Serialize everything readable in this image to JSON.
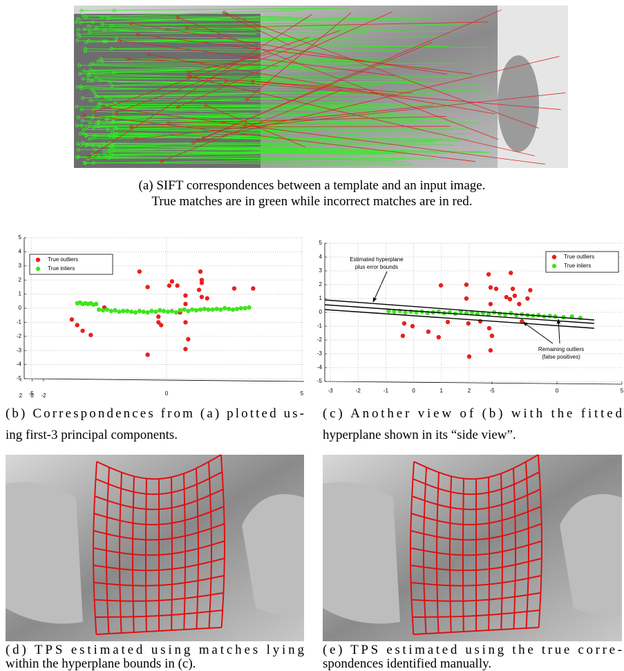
{
  "captions": {
    "a": [
      "(a) SIFT correspondences between a template and an input image.",
      "True matches are in green while incorrect matches are in red."
    ],
    "b": [
      "(b) Correspondences from (a) plotted us-",
      "ing first-3 principal components."
    ],
    "c": [
      "(c) Another view of (b) with the fitted",
      "hyperplane shown in its “side view”."
    ],
    "d": [
      "(d) TPS estimated using matches lying",
      "within the hyperplane bounds in (c)."
    ],
    "e": [
      "(e) TPS estimated using the true corre-",
      "spondences identified manually."
    ]
  },
  "chart_data": [
    {
      "type": "scatter",
      "legend": "upper left",
      "xlim": [
        -5.26,
        5.08
      ],
      "xticks": [
        -5,
        0,
        5
      ],
      "ylim": [
        -5,
        5
      ],
      "yticks": [
        -5,
        -4,
        -3,
        -2,
        -1,
        0,
        1,
        2,
        3,
        4,
        5
      ],
      "zlim": [
        2,
        -2
      ],
      "zticks": [
        2,
        0,
        -2
      ],
      "grid": true,
      "series": [
        {
          "name": "True outliers",
          "color": "#e8201c",
          "x": [
            -3.5,
            -3.3,
            -3.1,
            -2.8,
            -1.0,
            -0.7,
            0.1,
            0.2,
            0.4,
            0.7,
            1.25,
            1.3,
            1.3,
            1.2,
            1.3,
            1.5,
            2.5,
            3.2,
            -0.3,
            -0.3,
            -0.2,
            0.7,
            0.5,
            0.8,
            0.7,
            -0.7,
            0.7,
            -2.3
          ],
          "values": [
            -0.8,
            -1.2,
            -1.6,
            -1.9,
            2.6,
            1.5,
            1.6,
            1.9,
            1.6,
            0.9,
            2.6,
            2.0,
            1.8,
            1.3,
            0.8,
            0.7,
            1.4,
            1.4,
            -0.6,
            -1.0,
            -1.2,
            -1.0,
            -0.3,
            -2.2,
            -2.9,
            -3.3,
            0.3,
            0.05
          ]
        },
        {
          "name": "True inliers",
          "color": "#3fe51e",
          "x": [
            -3.3,
            -3.2,
            -3.1,
            -3.0,
            -2.9,
            -2.8,
            -2.7,
            -2.6,
            -2.5,
            -2.35,
            -2.2,
            -2.05,
            -1.9,
            -1.75,
            -1.6,
            -1.45,
            -1.3,
            -1.15,
            -1.0,
            -0.85,
            -0.7,
            -0.55,
            -0.4,
            -0.25,
            -0.1,
            0.05,
            0.2,
            0.35,
            0.5,
            0.65,
            0.8,
            0.95,
            1.1,
            1.25,
            1.4,
            1.55,
            1.7,
            1.85,
            2.0,
            2.15,
            2.3,
            2.45,
            2.6,
            2.75,
            2.9,
            3.05
          ],
          "values": [
            0.35,
            0.4,
            0.3,
            0.35,
            0.3,
            0.35,
            0.25,
            0.3,
            -0.1,
            -0.15,
            -0.1,
            -0.2,
            -0.15,
            -0.25,
            -0.2,
            -0.2,
            -0.25,
            -0.3,
            -0.2,
            -0.25,
            -0.3,
            -0.2,
            -0.25,
            -0.15,
            -0.2,
            -0.25,
            -0.2,
            -0.3,
            -0.15,
            -0.1,
            -0.2,
            -0.1,
            -0.15,
            -0.1,
            -0.05,
            -0.1,
            -0.1,
            -0.05,
            -0.1,
            0,
            -0.05,
            -0.1,
            -0.05,
            0,
            0,
            0.05
          ]
        }
      ]
    },
    {
      "type": "scatter",
      "legend": "upper right",
      "xlim": [
        -3.2,
        7.5
      ],
      "xticks": [
        -3,
        -2,
        -1,
        0,
        1,
        2
      ],
      "ylim": [
        -5,
        5
      ],
      "yticks": [
        -5,
        -4,
        -3,
        -2,
        -1,
        0,
        1,
        2,
        3,
        4,
        5
      ],
      "zlim": [
        -5,
        5
      ],
      "zticks": [
        -5,
        0,
        5
      ],
      "grid": true,
      "series": [
        {
          "name": "True outliers",
          "color": "#e8201c",
          "x": [
            -0.34,
            -0.39,
            -0.04,
            0.98,
            0.53,
            0.9,
            1.23,
            1.9,
            1.9,
            1.97,
            2.0,
            2.7,
            2.77,
            2.97,
            2.77,
            2.72,
            2.82,
            2.77,
            3.5,
            3.57,
            3.64,
            3.47,
            3.34,
            3.8,
            4.2,
            4.1,
            2.4,
            3.9
          ],
          "values": [
            -0.8,
            -1.7,
            -1.0,
            1.95,
            -1.4,
            -1.8,
            -0.7,
            2.0,
            1.0,
            -0.8,
            -3.2,
            2.75,
            1.8,
            1.7,
            0.6,
            -1.15,
            -1.7,
            -2.75,
            2.85,
            1.7,
            1.2,
            0.95,
            1.1,
            0.6,
            1.6,
            1.0,
            -0.65,
            -0.65
          ]
        },
        {
          "name": "True inliers",
          "color": "#3fe51e",
          "x": [
            -0.9,
            -0.7,
            -0.5,
            -0.3,
            -0.1,
            0.1,
            0.3,
            0.5,
            0.7,
            0.9,
            1.1,
            1.3,
            1.5,
            1.7,
            1.9,
            2.1,
            2.3,
            2.5,
            2.7,
            2.9,
            3.1,
            3.3,
            3.5,
            3.7,
            3.9,
            4.1,
            4.3,
            4.5,
            4.7,
            4.9,
            5.1,
            5.4,
            5.7,
            6.0
          ],
          "values": [
            0.1,
            0.05,
            0.1,
            0.0,
            0.05,
            0.0,
            0.05,
            -0.05,
            0.0,
            0.05,
            -0.05,
            0.0,
            -0.1,
            0.05,
            -0.05,
            0.0,
            -0.1,
            -0.05,
            -0.15,
            0.0,
            -0.1,
            -0.15,
            -0.05,
            -0.2,
            -0.15,
            -0.2,
            -0.25,
            -0.2,
            -0.3,
            -0.25,
            -0.3,
            -0.35,
            -0.3,
            -0.4
          ]
        }
      ],
      "lines": [
        {
          "x": [
            -3.2,
            6.5
          ],
          "values": [
            0.9,
            -0.55
          ]
        },
        {
          "x": [
            -3.2,
            6.5
          ],
          "values": [
            0.55,
            -0.8
          ]
        },
        {
          "x": [
            -3.2,
            6.5
          ],
          "values": [
            0.2,
            -1.15
          ]
        }
      ],
      "annotations": [
        {
          "lines": [
            "Estimated hyperplane",
            "plus error bounds"
          ]
        },
        {
          "lines": [
            "Remaining outliers",
            "(false positives)"
          ]
        }
      ]
    }
  ]
}
